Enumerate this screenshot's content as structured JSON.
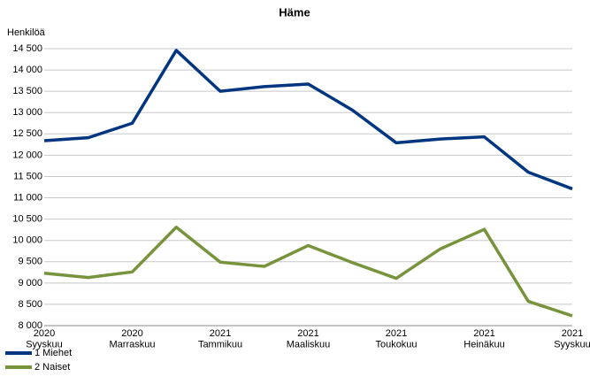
{
  "chart_data": {
    "type": "line",
    "title": "Häme",
    "y_label": "Henkilöä",
    "categories": [
      "2020\nSyyskuu",
      null,
      "2020\nMarraskuu",
      null,
      "2021\nTammikuu",
      null,
      "2021\nMaaliskuu",
      null,
      "2021\nToukokuu",
      null,
      "2021\nHeinäkuu",
      null,
      "2021\nSyyskuu"
    ],
    "series": [
      {
        "name": "1 Miehet",
        "color": "#003580",
        "values": [
          12340,
          12410,
          12750,
          14460,
          13500,
          13610,
          13670,
          13060,
          12290,
          12380,
          12430,
          11600,
          11210
        ]
      },
      {
        "name": "2 Naiset",
        "color": "#77933c",
        "values": [
          9230,
          9130,
          9260,
          10310,
          9490,
          9390,
          9880,
          9480,
          9110,
          9800,
          10260,
          8570,
          8230
        ]
      }
    ],
    "ylim": [
      8000,
      14500
    ],
    "yticks": [
      {
        "value": 8000,
        "label": "8 000"
      },
      {
        "value": 8500,
        "label": "8 500"
      },
      {
        "value": 9000,
        "label": "9 000"
      },
      {
        "value": 9500,
        "label": "9 500"
      },
      {
        "value": 10000,
        "label": "10 000"
      },
      {
        "value": 10500,
        "label": "10 500"
      },
      {
        "value": 11000,
        "label": "11 000"
      },
      {
        "value": 11500,
        "label": "11 500"
      },
      {
        "value": 12000,
        "label": "12 000"
      },
      {
        "value": 12500,
        "label": "12 500"
      },
      {
        "value": 13000,
        "label": "13 000"
      },
      {
        "value": 13500,
        "label": "13 500"
      },
      {
        "value": 14000,
        "label": "14 000"
      },
      {
        "value": 14500,
        "label": "14 500"
      }
    ],
    "grid": true,
    "legend": "bottom-left"
  }
}
